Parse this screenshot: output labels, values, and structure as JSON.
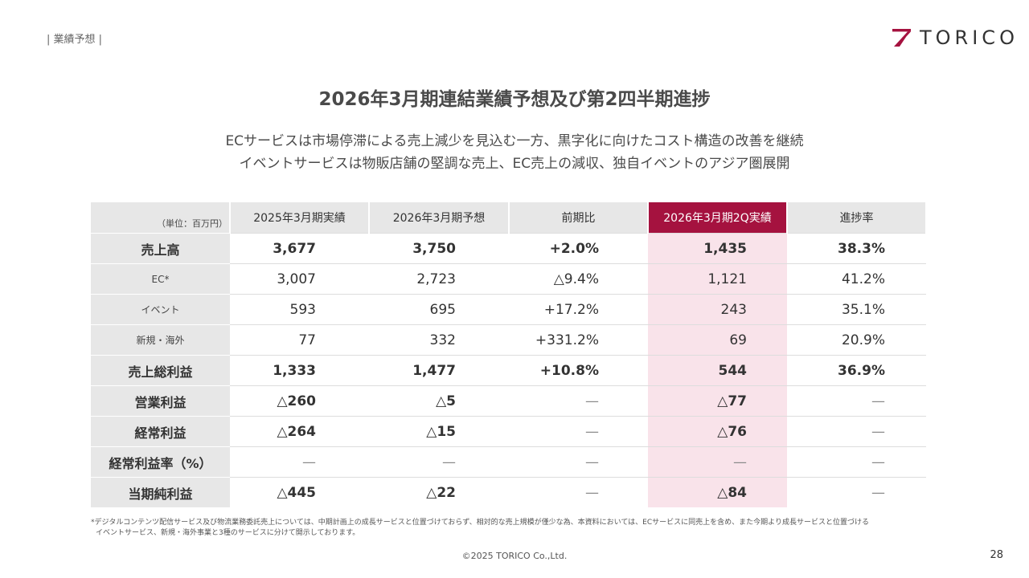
{
  "header": {
    "section_tag": "| 業績予想 |",
    "logo_text": "TORICO"
  },
  "title": "2026年3月期連結業績予想及び第2四半期進捗",
  "subtitle_lines": [
    "ECサービスは市場停滞による売上減少を見込む一方、黒字化に向けたコスト構造の改善を継続",
    "イベントサービスは物販店舗の堅調な売上、EC売上の減収、独自イベントのアジア圏展開"
  ],
  "table": {
    "unit": "（単位：百万円）",
    "columns": [
      "2025年3月期実績",
      "2026年3月期予想",
      "前期比",
      "2026年3月期2Q実績",
      "進捗率"
    ],
    "rows": [
      {
        "label": "売上高",
        "values": [
          "3,677",
          "3,750",
          "+2.0%",
          "1,435",
          "38.3%"
        ]
      },
      {
        "label": "EC*",
        "values": [
          "3,007",
          "2,723",
          "△9.4%",
          "1,121",
          "41.2%"
        ]
      },
      {
        "label": "イベント",
        "values": [
          "593",
          "695",
          "+17.2%",
          "243",
          "35.1%"
        ]
      },
      {
        "label": "新規・海外",
        "values": [
          "77",
          "332",
          "+331.2%",
          "69",
          "20.9%"
        ]
      },
      {
        "label": "売上総利益",
        "values": [
          "1,333",
          "1,477",
          "+10.8%",
          "544",
          "36.9%"
        ]
      },
      {
        "label": "営業利益",
        "values": [
          "△260",
          "△5",
          "—",
          "△77",
          "—"
        ]
      },
      {
        "label": "経常利益",
        "values": [
          "△264",
          "△15",
          "—",
          "△76",
          "—"
        ]
      },
      {
        "label": "経常利益率（%）",
        "values": [
          "—",
          "—",
          "—",
          "—",
          "—"
        ]
      },
      {
        "label": "当期純利益",
        "values": [
          "△445",
          "△22",
          "—",
          "△84",
          "—"
        ]
      }
    ]
  },
  "footnote_lines": [
    "*デジタルコンテンツ配信サービス及び物流業務委託売上については、中期計画上の成長サービスと位置づけておらず、相対的な売上規模が僅少な為、本資料においては、ECサービスに同売上を含め、また今期より成長サービスと位置づける",
    "イベントサービス、新規・海外事業と3種のサービスに分けて開示しております。"
  ],
  "footer": {
    "copyright": "©2025 TORICO Co.,Ltd.",
    "page_number": "28"
  },
  "colors": {
    "accent": "#a5123f",
    "highlight_bg": "#f9e3ea",
    "label_bg": "#e7e7e7"
  }
}
